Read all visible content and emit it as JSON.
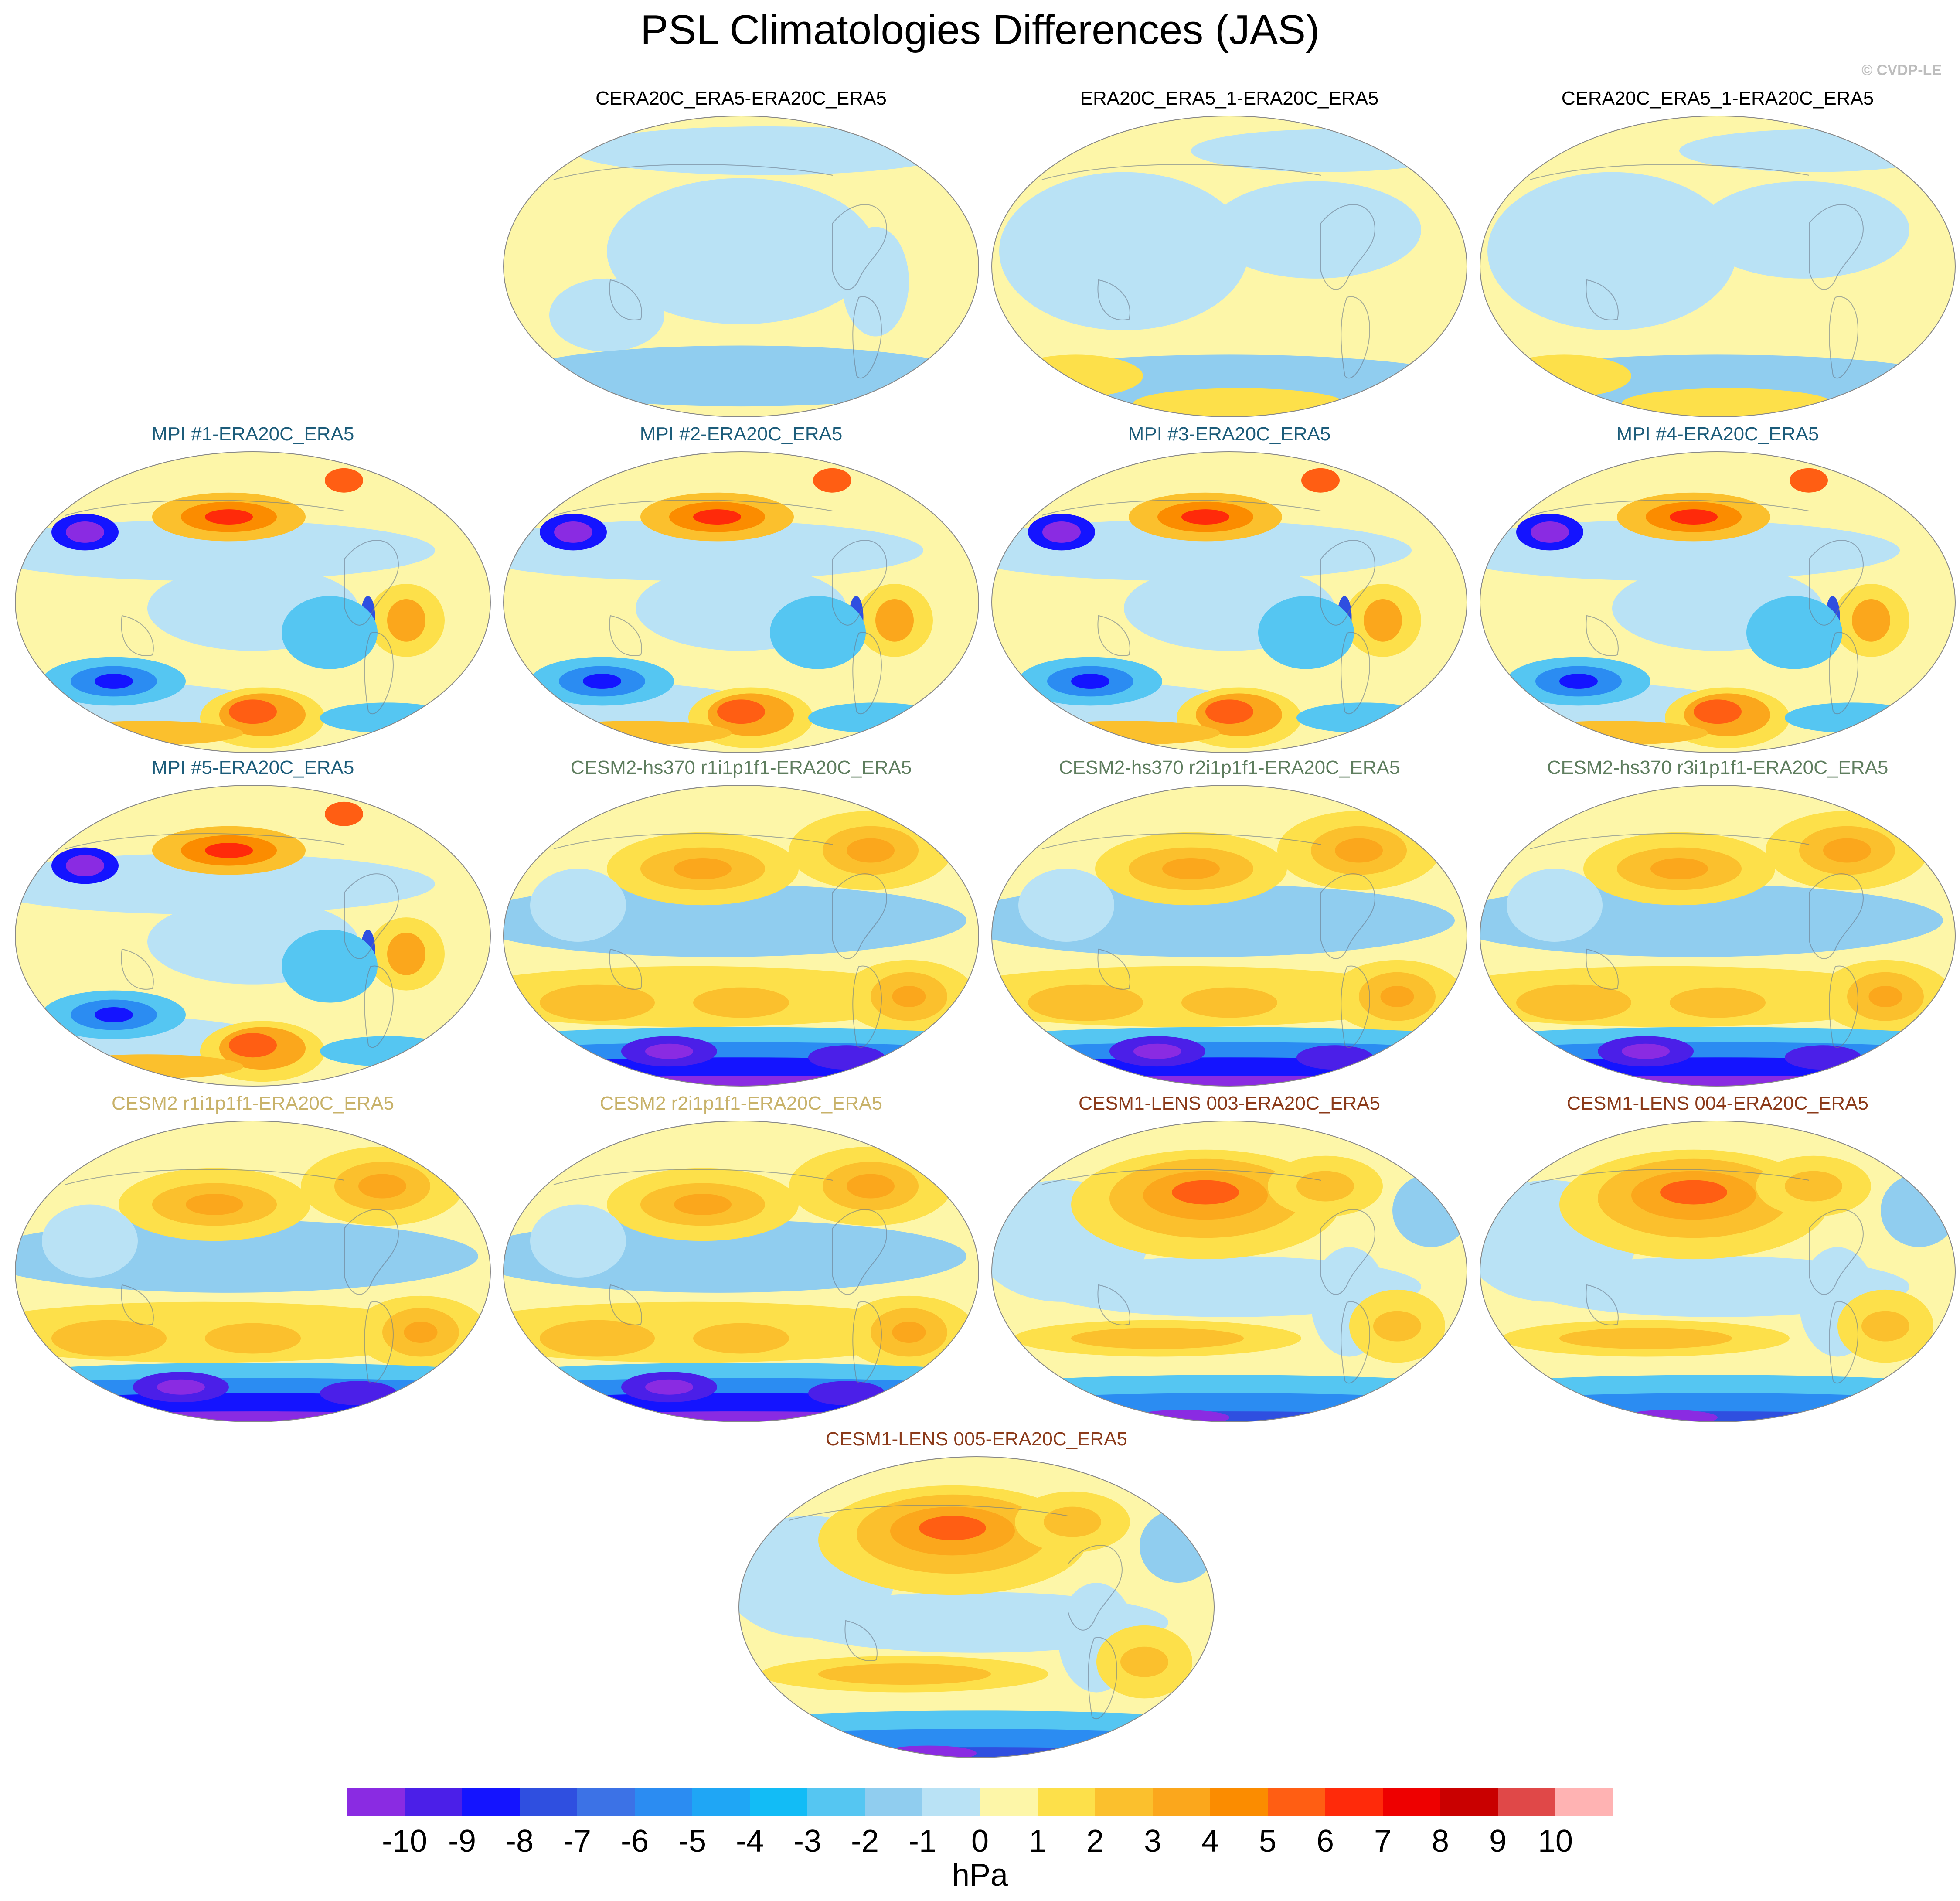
{
  "figure": {
    "title": "PSL Climatologies Differences (JAS)",
    "watermark": "© CVDP-LE",
    "units": "hPa"
  },
  "chart_data": {
    "type": "heatmap",
    "projection": "Robinson-style global map, Pacific-centered",
    "colorbar": {
      "levels": [
        -10,
        -9,
        -8,
        -7,
        -6,
        -5,
        -4,
        -3,
        -2,
        -1,
        0,
        1,
        2,
        3,
        4,
        5,
        6,
        7,
        8,
        9,
        10
      ],
      "tick_labels": [
        "-10",
        "-9",
        "-8",
        "-7",
        "-6",
        "-5",
        "-4",
        "-3",
        "-2",
        "-1",
        "0",
        "1",
        "2",
        "3",
        "4",
        "5",
        "6",
        "7",
        "8",
        "9",
        "10"
      ],
      "colors": [
        "#8a2be2",
        "#4b1fe8",
        "#1414ff",
        "#2f4fe0",
        "#3c72e6",
        "#2b8cf2",
        "#1fa6f5",
        "#12bcf6",
        "#55c6f2",
        "#90cdef",
        "#b9e2f5",
        "#fdf6a8",
        "#fde04a",
        "#fbc02d",
        "#fba71c",
        "#fb8c00",
        "#ff5e13",
        "#ff2a0a",
        "#ee0000",
        "#c90000",
        "#e04848",
        "#ffb3b3"
      ]
    },
    "panels": [
      {
        "id": "p1",
        "title": "CERA20C_ERA5-ERA20C_ERA5",
        "title_color": "#000000",
        "pattern": "rean-a"
      },
      {
        "id": "p2",
        "title": "ERA20C_ERA5_1-ERA20C_ERA5",
        "title_color": "#000000",
        "pattern": "rean-b"
      },
      {
        "id": "p3",
        "title": "CERA20C_ERA5_1-ERA20C_ERA5",
        "title_color": "#000000",
        "pattern": "rean-b"
      },
      {
        "id": "p4",
        "title": "MPI #1-ERA20C_ERA5",
        "title_color": "#1c5c7a",
        "pattern": "mpi"
      },
      {
        "id": "p5",
        "title": "MPI #2-ERA20C_ERA5",
        "title_color": "#1c5c7a",
        "pattern": "mpi"
      },
      {
        "id": "p6",
        "title": "MPI #3-ERA20C_ERA5",
        "title_color": "#1c5c7a",
        "pattern": "mpi"
      },
      {
        "id": "p7",
        "title": "MPI #4-ERA20C_ERA5",
        "title_color": "#1c5c7a",
        "pattern": "mpi"
      },
      {
        "id": "p8",
        "title": "MPI #5-ERA20C_ERA5",
        "title_color": "#1c5c7a",
        "pattern": "mpi"
      },
      {
        "id": "p9",
        "title": "CESM2-hs370 r1i1p1f1-ERA20C_ERA5",
        "title_color": "#5e7d5e",
        "pattern": "cesm2"
      },
      {
        "id": "p10",
        "title": "CESM2-hs370 r2i1p1f1-ERA20C_ERA5",
        "title_color": "#5e7d5e",
        "pattern": "cesm2"
      },
      {
        "id": "p11",
        "title": "CESM2-hs370 r3i1p1f1-ERA20C_ERA5",
        "title_color": "#5e7d5e",
        "pattern": "cesm2"
      },
      {
        "id": "p12",
        "title": "CESM2 r1i1p1f1-ERA20C_ERA5",
        "title_color": "#c8b26a",
        "pattern": "cesm2"
      },
      {
        "id": "p13",
        "title": "CESM2 r2i1p1f1-ERA20C_ERA5",
        "title_color": "#c8b26a",
        "pattern": "cesm2"
      },
      {
        "id": "p14",
        "title": "CESM1-LENS 003-ERA20C_ERA5",
        "title_color": "#8b3a1a",
        "pattern": "cesm1"
      },
      {
        "id": "p15",
        "title": "CESM1-LENS 004-ERA20C_ERA5",
        "title_color": "#8b3a1a",
        "pattern": "cesm1"
      },
      {
        "id": "p16",
        "title": "CESM1-LENS 005-ERA20C_ERA5",
        "title_color": "#8b3a1a",
        "pattern": "cesm1"
      }
    ]
  }
}
